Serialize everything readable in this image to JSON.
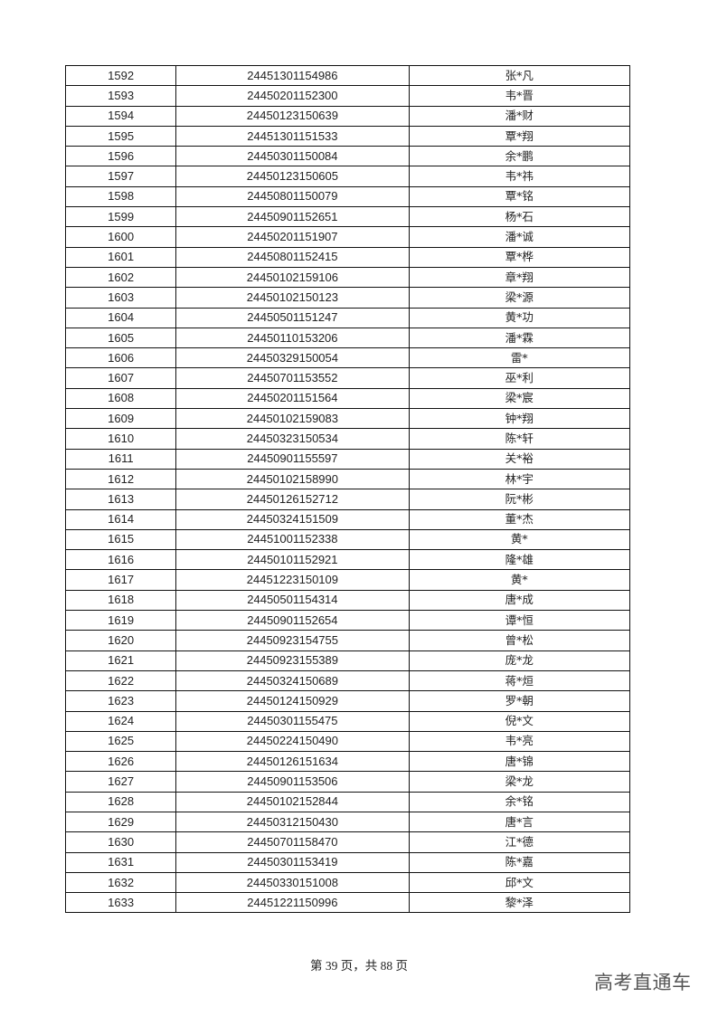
{
  "table": {
    "rows": [
      [
        "1592",
        "24451301154986",
        "张*凡"
      ],
      [
        "1593",
        "24450201152300",
        "韦*晋"
      ],
      [
        "1594",
        "24450123150639",
        "潘*财"
      ],
      [
        "1595",
        "24451301151533",
        "覃*翔"
      ],
      [
        "1596",
        "24450301150084",
        "余*鹏"
      ],
      [
        "1597",
        "24450123150605",
        "韦*祎"
      ],
      [
        "1598",
        "24450801150079",
        "覃*铭"
      ],
      [
        "1599",
        "24450901152651",
        "杨*石"
      ],
      [
        "1600",
        "24450201151907",
        "潘*诚"
      ],
      [
        "1601",
        "24450801152415",
        "覃*桦"
      ],
      [
        "1602",
        "24450102159106",
        "章*翔"
      ],
      [
        "1603",
        "24450102150123",
        "梁*源"
      ],
      [
        "1604",
        "24450501151247",
        "黄*功"
      ],
      [
        "1605",
        "24450110153206",
        "潘*霖"
      ],
      [
        "1606",
        "24450329150054",
        "雷*"
      ],
      [
        "1607",
        "24450701153552",
        "巫*利"
      ],
      [
        "1608",
        "24450201151564",
        "梁*宸"
      ],
      [
        "1609",
        "24450102159083",
        "钟*翔"
      ],
      [
        "1610",
        "24450323150534",
        "陈*轩"
      ],
      [
        "1611",
        "24450901155597",
        "关*裕"
      ],
      [
        "1612",
        "24450102158990",
        "林*宇"
      ],
      [
        "1613",
        "24450126152712",
        "阮*彬"
      ],
      [
        "1614",
        "24450324151509",
        "董*杰"
      ],
      [
        "1615",
        "24451001152338",
        "黄*"
      ],
      [
        "1616",
        "24450101152921",
        "隆*雄"
      ],
      [
        "1617",
        "24451223150109",
        "黄*"
      ],
      [
        "1618",
        "24450501154314",
        "唐*成"
      ],
      [
        "1619",
        "24450901152654",
        "谭*恒"
      ],
      [
        "1620",
        "24450923154755",
        "曾*松"
      ],
      [
        "1621",
        "24450923155389",
        "庞*龙"
      ],
      [
        "1622",
        "24450324150689",
        "蒋*烜"
      ],
      [
        "1623",
        "24450124150929",
        "罗*朝"
      ],
      [
        "1624",
        "24450301155475",
        "倪*文"
      ],
      [
        "1625",
        "24450224150490",
        "韦*亮"
      ],
      [
        "1626",
        "24450126151634",
        "唐*锦"
      ],
      [
        "1627",
        "24450901153506",
        "梁*龙"
      ],
      [
        "1628",
        "24450102152844",
        "余*铭"
      ],
      [
        "1629",
        "24450312150430",
        "唐*言"
      ],
      [
        "1630",
        "24450701158470",
        "江*德"
      ],
      [
        "1631",
        "24450301153419",
        "陈*嘉"
      ],
      [
        "1632",
        "24450330151008",
        "邱*文"
      ],
      [
        "1633",
        "24451221150996",
        "黎*泽"
      ]
    ]
  },
  "footer": {
    "page_text": "第 39 页，共 88 页"
  },
  "watermark": {
    "text": "高考直通车"
  }
}
